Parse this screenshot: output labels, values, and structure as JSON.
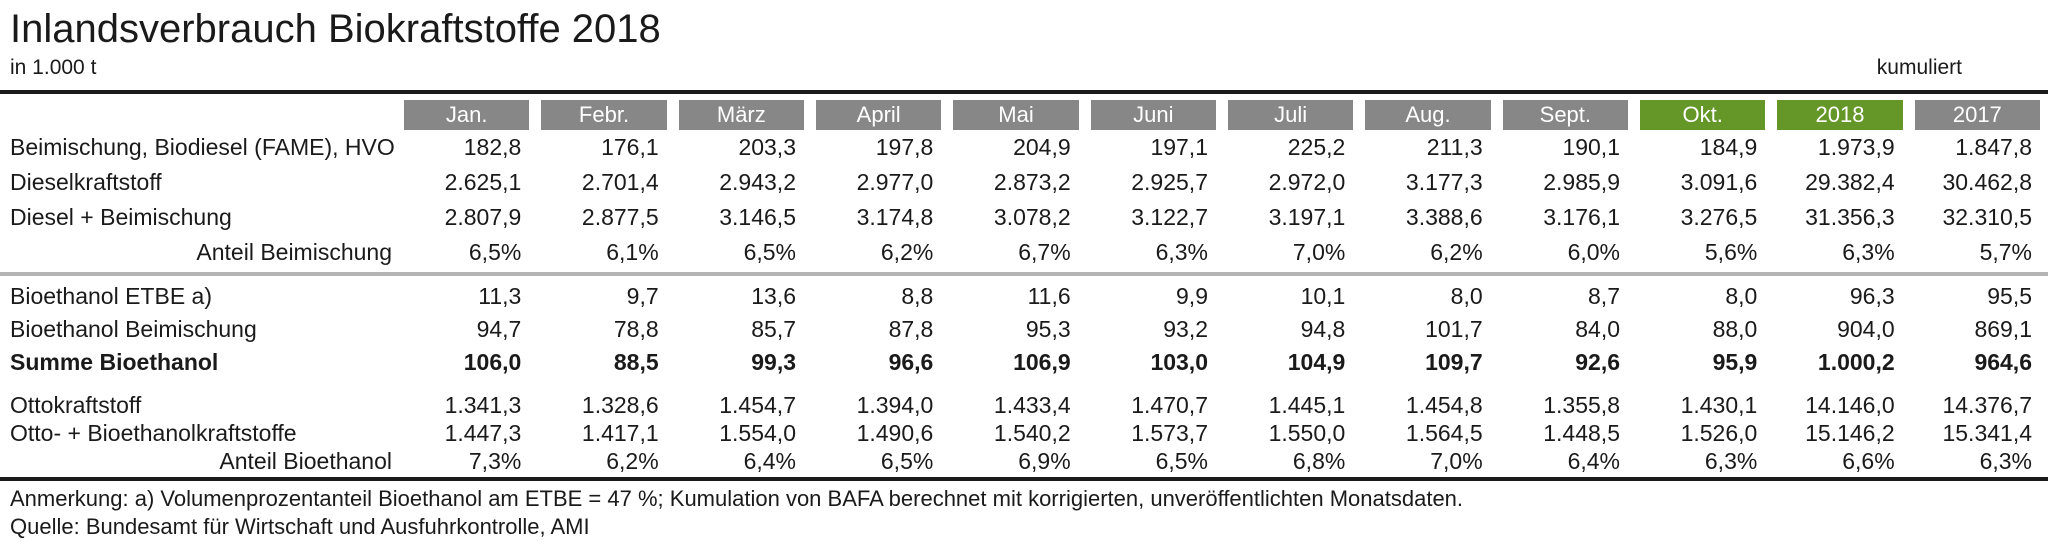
{
  "header": {
    "title": "Inlandsverbrauch Biokraftstoffe 2018",
    "unit": "in 1.000 t",
    "kumuliert": "kumuliert"
  },
  "colors": {
    "header_gray": "#878787",
    "header_green": "#649628",
    "divider": "#b4b4b4",
    "rule": "#1a1a1a"
  },
  "chart_data": {
    "type": "table",
    "title": "Inlandsverbrauch Biokraftstoffe 2018",
    "unit": "in 1.000 t",
    "cumulative_note": "kumuliert",
    "columns": [
      {
        "label": "Jan.",
        "style": "gray"
      },
      {
        "label": "Febr.",
        "style": "gray"
      },
      {
        "label": "März",
        "style": "gray"
      },
      {
        "label": "April",
        "style": "gray"
      },
      {
        "label": "Mai",
        "style": "gray"
      },
      {
        "label": "Juni",
        "style": "gray"
      },
      {
        "label": "Juli",
        "style": "gray"
      },
      {
        "label": "Aug.",
        "style": "gray"
      },
      {
        "label": "Sept.",
        "style": "gray"
      },
      {
        "label": "Okt.",
        "style": "green"
      },
      {
        "label": "2018",
        "style": "green"
      },
      {
        "label": "2017",
        "style": "gray"
      }
    ],
    "rows": [
      {
        "label": "Beimischung, Biodiesel (FAME), HVO",
        "group": 1,
        "indent": false,
        "bold": false,
        "values": [
          "182,8",
          "176,1",
          "203,3",
          "197,8",
          "204,9",
          "197,1",
          "225,2",
          "211,3",
          "190,1",
          "184,9",
          "1.973,9",
          "1.847,8"
        ]
      },
      {
        "label": "Dieselkraftstoff",
        "group": 1,
        "indent": false,
        "bold": false,
        "values": [
          "2.625,1",
          "2.701,4",
          "2.943,2",
          "2.977,0",
          "2.873,2",
          "2.925,7",
          "2.972,0",
          "3.177,3",
          "2.985,9",
          "3.091,6",
          "29.382,4",
          "30.462,8"
        ]
      },
      {
        "label": "Diesel + Beimischung",
        "group": 1,
        "indent": false,
        "bold": false,
        "values": [
          "2.807,9",
          "2.877,5",
          "3.146,5",
          "3.174,8",
          "3.078,2",
          "3.122,7",
          "3.197,1",
          "3.388,6",
          "3.176,1",
          "3.276,5",
          "31.356,3",
          "32.310,5"
        ]
      },
      {
        "label": "Anteil Beimischung",
        "group": 1,
        "indent": true,
        "bold": false,
        "values": [
          "6,5%",
          "6,1%",
          "6,5%",
          "6,2%",
          "6,7%",
          "6,3%",
          "7,0%",
          "6,2%",
          "6,0%",
          "5,6%",
          "6,3%",
          "5,7%"
        ]
      },
      {
        "label": "Bioethanol ETBE a)",
        "group": 2,
        "indent": false,
        "bold": false,
        "values": [
          "11,3",
          "9,7",
          "13,6",
          "8,8",
          "11,6",
          "9,9",
          "10,1",
          "8,0",
          "8,7",
          "8,0",
          "96,3",
          "95,5"
        ]
      },
      {
        "label": "Bioethanol Beimischung",
        "group": 2,
        "indent": false,
        "bold": false,
        "values": [
          "94,7",
          "78,8",
          "85,7",
          "87,8",
          "95,3",
          "93,2",
          "94,8",
          "101,7",
          "84,0",
          "88,0",
          "904,0",
          "869,1"
        ]
      },
      {
        "label": "Summe Bioethanol",
        "group": 2,
        "indent": false,
        "bold": true,
        "values": [
          "106,0",
          "88,5",
          "99,3",
          "96,6",
          "106,9",
          "103,0",
          "104,9",
          "109,7",
          "92,6",
          "95,9",
          "1.000,2",
          "964,6"
        ]
      },
      {
        "label": "Ottokraftstoff",
        "group": 3,
        "indent": false,
        "bold": false,
        "values": [
          "1.341,3",
          "1.328,6",
          "1.454,7",
          "1.394,0",
          "1.433,4",
          "1.470,7",
          "1.445,1",
          "1.454,8",
          "1.355,8",
          "1.430,1",
          "14.146,0",
          "14.376,7"
        ]
      },
      {
        "label": "Otto- + Bioethanolkraftstoffe",
        "group": 3,
        "indent": false,
        "bold": false,
        "values": [
          "1.447,3",
          "1.417,1",
          "1.554,0",
          "1.490,6",
          "1.540,2",
          "1.573,7",
          "1.550,0",
          "1.564,5",
          "1.448,5",
          "1.526,0",
          "15.146,2",
          "15.341,4"
        ]
      },
      {
        "label": "Anteil Bioethanol",
        "group": 3,
        "indent": true,
        "bold": false,
        "values": [
          "7,3%",
          "6,2%",
          "6,4%",
          "6,5%",
          "6,9%",
          "6,5%",
          "6,8%",
          "7,0%",
          "6,4%",
          "6,3%",
          "6,6%",
          "6,3%"
        ]
      }
    ]
  },
  "footer": {
    "note": "Anmerkung: a) Volumenprozentanteil Bioethanol am ETBE = 47 %; Kumulation von BAFA berechnet mit korrigierten, unveröffentlichten Monatsdaten.",
    "source": "Quelle: Bundesamt für Wirtschaft und Ausfuhrkontrolle, AMI"
  }
}
